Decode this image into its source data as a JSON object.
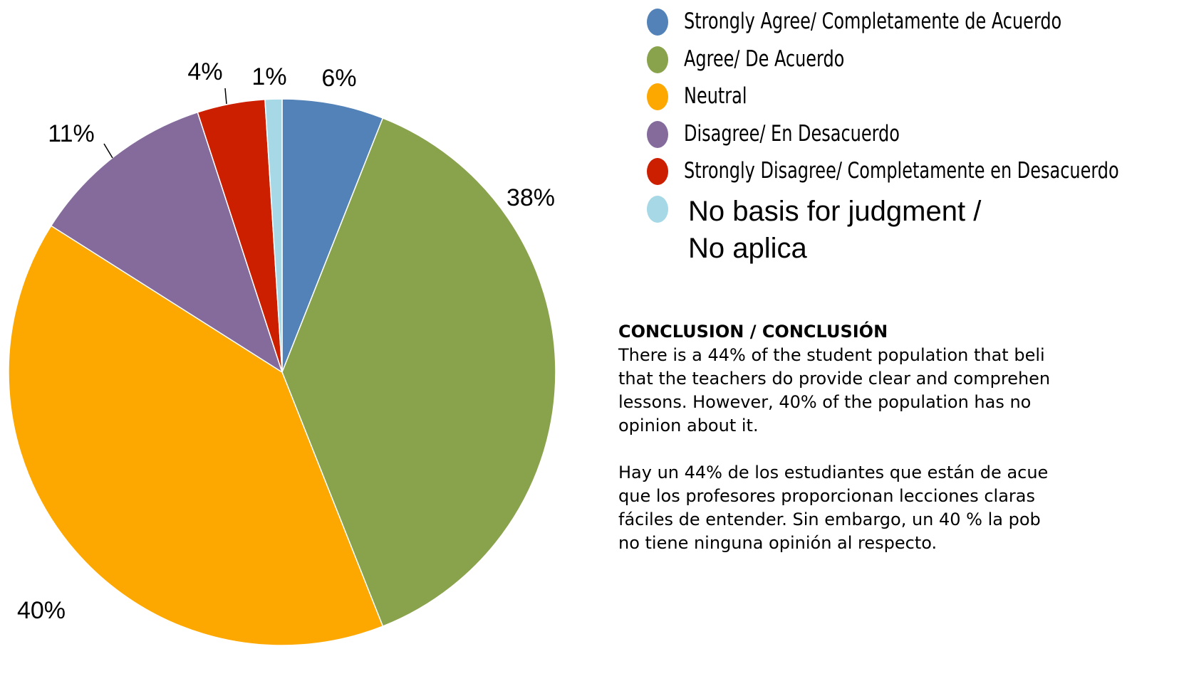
{
  "chart_data": {
    "type": "pie",
    "categories": [
      "Strongly Agree/ Completamente de Acuerdo",
      "Agree/ De Acuerdo",
      "Neutral",
      "Disagree/ En Desacuerdo",
      "Strongly Disagree/ Completamente en Desacuerdo",
      "No basis for judgment / No aplica"
    ],
    "values": [
      6,
      38,
      40,
      11,
      4,
      1
    ],
    "value_labels": [
      "6%",
      "38%",
      "40%",
      "11%",
      "4%",
      "1%"
    ],
    "colors": [
      "#5282b7",
      "#89a24c",
      "#fca800",
      "#846b9c",
      "#cc1f00",
      "#a6d8e6"
    ]
  },
  "conclusion": {
    "heading": "CONCLUSION / CONCLUSIÓN",
    "paragraphs": [
      [
        "There is a 44% of the student population that beli",
        "that the teachers do provide clear and comprehen",
        "lessons.  However, 40% of the population has no",
        "opinion about it."
      ],
      [
        "Hay un 44% de los estudiantes que están de acue",
        "que los profesores proporcionan lecciones claras",
        "fáciles de entender.  Sin embargo, un 40 % la pob",
        "no tiene ninguna opinión al respecto."
      ]
    ]
  }
}
